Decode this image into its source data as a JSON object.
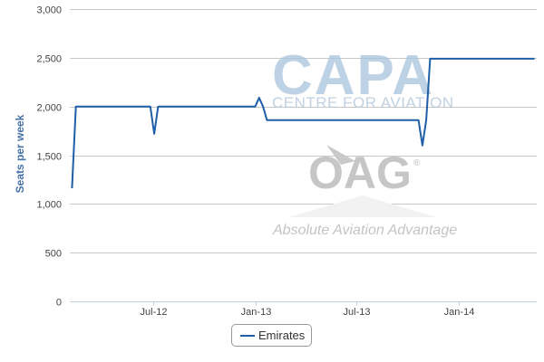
{
  "chart_data": {
    "type": "line",
    "ylabel": "Seats per week",
    "ylim": [
      0,
      3000
    ],
    "yticks": [
      0,
      500,
      1000,
      1500,
      2000,
      2500,
      3000
    ],
    "ytick_labels": [
      "0",
      "500",
      "1,000",
      "1,500",
      "2,000",
      "2,500",
      "3,000"
    ],
    "xlim": [
      "2012-02-01",
      "2014-05-22"
    ],
    "xticks": [
      "2012-07-01",
      "2013-01-01",
      "2013-07-01",
      "2014-01-01"
    ],
    "xtick_labels": [
      "Jul-12",
      "Jan-13",
      "Jul-13",
      "Jan-14"
    ],
    "grid": true,
    "legend": "bottom-center",
    "series": [
      {
        "name": "Emirates",
        "color": "#1f5ea8",
        "x": [
          "2012-02-05",
          "2012-02-12",
          "2012-06-25",
          "2012-07-02",
          "2012-07-09",
          "2012-12-31",
          "2013-01-07",
          "2013-01-14",
          "2013-01-21",
          "2013-10-21",
          "2013-10-28",
          "2013-11-04",
          "2013-11-11",
          "2014-05-18"
        ],
        "values": [
          1160,
          2000,
          2000,
          1720,
          2000,
          2000,
          2090,
          2000,
          1860,
          1860,
          1600,
          1860,
          2490,
          2490
        ]
      }
    ]
  },
  "watermark": {
    "capa": "CAPA",
    "capa_sub": "CENTRE FOR AVIATION",
    "oag": "OAG",
    "oag_reg": "®",
    "tagline": "Absolute Aviation Advantage"
  }
}
